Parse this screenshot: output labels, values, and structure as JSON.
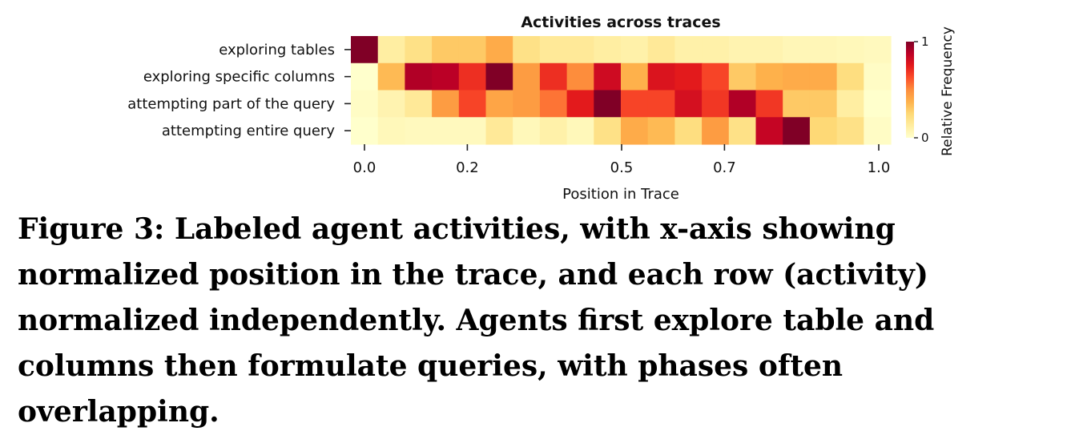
{
  "chart_data": {
    "type": "heatmap",
    "title": "Activities across traces",
    "xlabel": "Position in Trace",
    "ylabel": "",
    "rows": [
      "exploring tables",
      "exploring specific columns",
      "attempting part of the query",
      "attempting entire query"
    ],
    "x_tick_labels": [
      "0.0",
      "0.2",
      "0.5",
      "0.7",
      "1.0"
    ],
    "x_tick_values": [
      0.0,
      0.2,
      0.5,
      0.7,
      1.0
    ],
    "x_range": [
      0,
      1
    ],
    "n_bins": 20,
    "values": [
      [
        1.0,
        0.12,
        0.2,
        0.3,
        0.3,
        0.4,
        0.2,
        0.15,
        0.15,
        0.12,
        0.1,
        0.15,
        0.1,
        0.1,
        0.08,
        0.08,
        0.06,
        0.06,
        0.05,
        0.04
      ],
      [
        0.0,
        0.35,
        0.9,
        0.88,
        0.7,
        1.0,
        0.45,
        0.7,
        0.5,
        0.82,
        0.38,
        0.78,
        0.75,
        0.65,
        0.3,
        0.38,
        0.4,
        0.4,
        0.22,
        0.02
      ],
      [
        0.02,
        0.08,
        0.15,
        0.45,
        0.65,
        0.42,
        0.45,
        0.55,
        0.75,
        1.0,
        0.65,
        0.65,
        0.8,
        0.68,
        0.9,
        0.68,
        0.3,
        0.3,
        0.12,
        0.0
      ],
      [
        0.0,
        0.05,
        0.04,
        0.04,
        0.04,
        0.15,
        0.05,
        0.1,
        0.05,
        0.2,
        0.4,
        0.35,
        0.22,
        0.45,
        0.2,
        0.85,
        1.0,
        0.25,
        0.2,
        0.02
      ]
    ],
    "colorbar": {
      "label": "Relative Frequency",
      "range": [
        0,
        1
      ],
      "tick_labels": [
        "1",
        "0"
      ],
      "colormap": "YlOrRd",
      "stops": [
        "#ffffcc",
        "#ffeda0",
        "#fed976",
        "#feb24c",
        "#fd8d3c",
        "#fc4e2a",
        "#e31a1c",
        "#bd0026",
        "#800026"
      ]
    },
    "grid": false,
    "legend": "right"
  },
  "caption": "Figure 3: Labeled agent activities, with x-axis showing normalized position in the trace, and each row (activity) normalized independently. Agents first explore table and columns then formulate queries, with phases often overlapping."
}
